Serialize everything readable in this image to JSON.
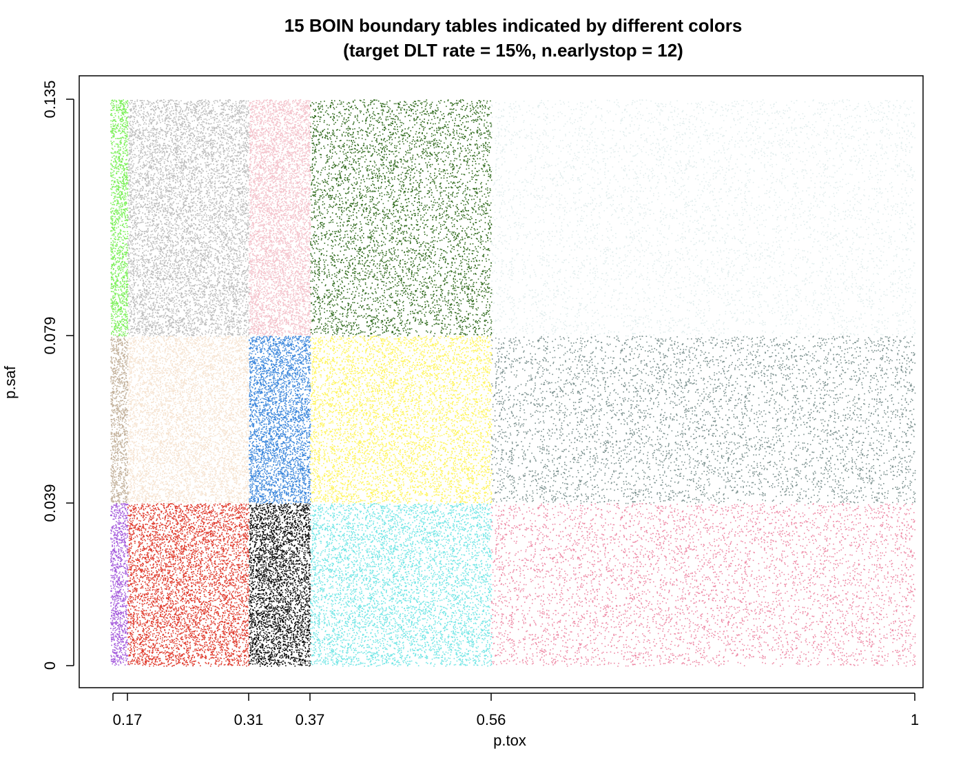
{
  "chart_data": {
    "type": "scatter",
    "title": "15 BOIN boundary tables indicated by different colors",
    "subtitle": "(target DLT rate = 15%, n.earlystop = 12)",
    "xlabel": "p.tox",
    "ylabel": "p.saf",
    "x_ticks": [
      {
        "value": 0.155,
        "label": ""
      },
      {
        "value": 0.17,
        "label": "0.17"
      },
      {
        "value": 0.31,
        "label": "0.31"
      },
      {
        "value": 0.37,
        "label": "0.37"
      },
      {
        "value": 0.56,
        "label": "0.56"
      },
      {
        "value": 1.0,
        "label": "1"
      }
    ],
    "y_ticks": [
      {
        "value": 0,
        "label": "0"
      },
      {
        "value": 0.039,
        "label": "0.039"
      },
      {
        "value": 0.079,
        "label": "0.079"
      },
      {
        "value": 0.135,
        "label": "0.135"
      }
    ],
    "x_breaks": [
      0.15,
      0.17,
      0.31,
      0.37,
      0.56,
      1.0
    ],
    "y_breaks": [
      0,
      0.039,
      0.079,
      0.135
    ],
    "regions": [
      {
        "x": [
          0.15,
          0.17
        ],
        "y": [
          0.079,
          0.135
        ],
        "color": "#7CF05A"
      },
      {
        "x": [
          0.17,
          0.31
        ],
        "y": [
          0.079,
          0.135
        ],
        "color": "#BDBDBD"
      },
      {
        "x": [
          0.31,
          0.37
        ],
        "y": [
          0.079,
          0.135
        ],
        "color": "#F4C3CC"
      },
      {
        "x": [
          0.37,
          0.56
        ],
        "y": [
          0.079,
          0.135
        ],
        "color": "#2F6A1C"
      },
      {
        "x": [
          0.56,
          1.0
        ],
        "y": [
          0.079,
          0.135
        ],
        "color": "#E2EEEE"
      },
      {
        "x": [
          0.15,
          0.17
        ],
        "y": [
          0.039,
          0.079
        ],
        "color": "#C4B29C"
      },
      {
        "x": [
          0.17,
          0.31
        ],
        "y": [
          0.039,
          0.079
        ],
        "color": "#F6E4D2"
      },
      {
        "x": [
          0.31,
          0.37
        ],
        "y": [
          0.039,
          0.079
        ],
        "color": "#3C87DC"
      },
      {
        "x": [
          0.37,
          0.56
        ],
        "y": [
          0.039,
          0.079
        ],
        "color": "#FFF55C"
      },
      {
        "x": [
          0.56,
          1.0
        ],
        "y": [
          0.039,
          0.079
        ],
        "color": "#7A908E"
      },
      {
        "x": [
          0.15,
          0.17
        ],
        "y": [
          0,
          0.039
        ],
        "color": "#A45ADC"
      },
      {
        "x": [
          0.17,
          0.31
        ],
        "y": [
          0,
          0.039
        ],
        "color": "#E03C2E"
      },
      {
        "x": [
          0.31,
          0.37
        ],
        "y": [
          0,
          0.039
        ],
        "color": "#0A0A0A"
      },
      {
        "x": [
          0.37,
          0.56
        ],
        "y": [
          0,
          0.039
        ],
        "color": "#72E6E6"
      },
      {
        "x": [
          0.56,
          1.0
        ],
        "y": [
          0,
          0.039
        ],
        "color": "#EE8AA6"
      }
    ],
    "grid": false,
    "legend": "none"
  }
}
